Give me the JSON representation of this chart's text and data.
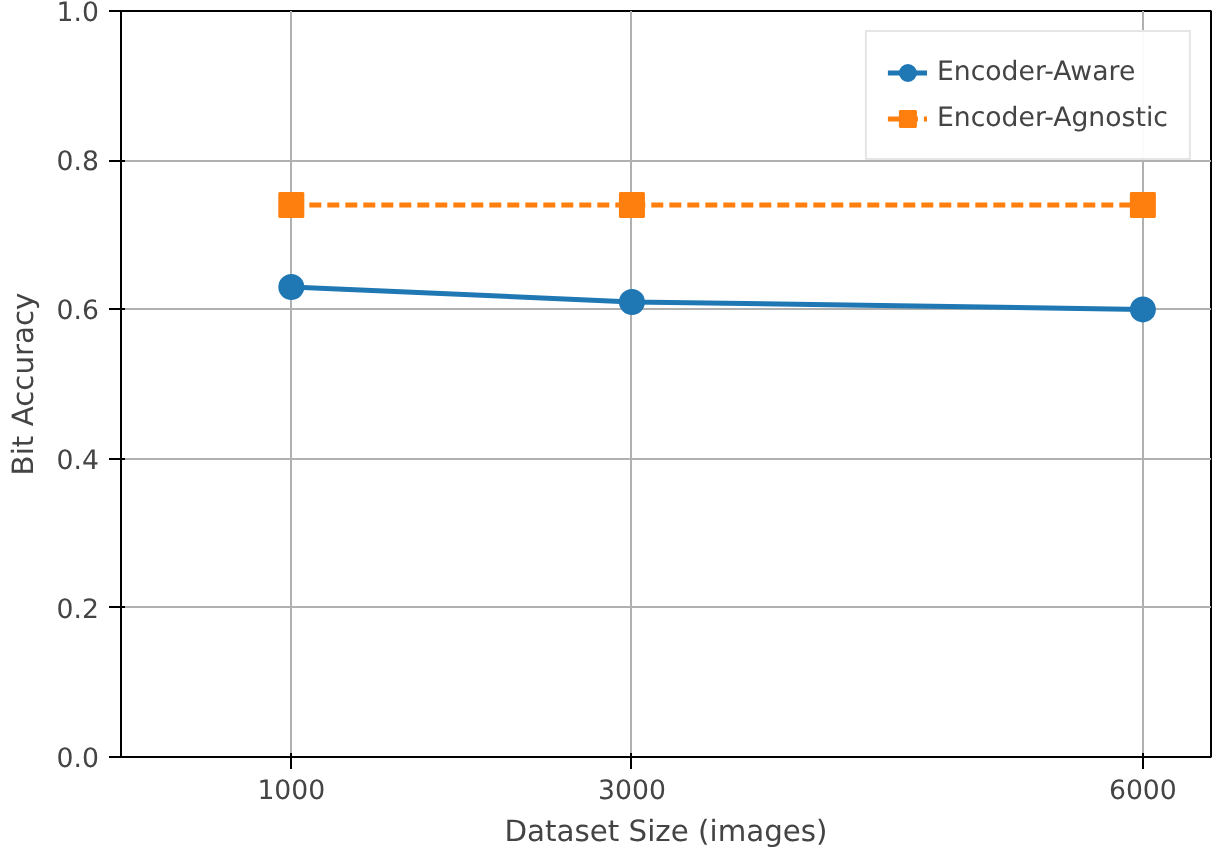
{
  "chart_data": {
    "type": "line",
    "xlabel": "Dataset Size (images)",
    "ylabel": "Bit Accuracy",
    "x": [
      1000,
      3000,
      6000
    ],
    "xlim": [
      0,
      6400
    ],
    "xticks": [
      1000,
      3000,
      6000
    ],
    "ylim": [
      0,
      1
    ],
    "yticks": [
      {
        "value": 0,
        "label": "0.0"
      },
      {
        "value": 0.2,
        "label": "0.2"
      },
      {
        "value": 0.4,
        "label": "0.4"
      },
      {
        "value": 0.6,
        "label": "0.6"
      },
      {
        "value": 0.8,
        "label": "0.8"
      },
      {
        "value": 1,
        "label": "1.0"
      }
    ],
    "grid": true,
    "legend": "top right",
    "series": [
      {
        "name": "Encoder-Aware",
        "color": "#1f77b4",
        "values": [
          0.63,
          0.61,
          0.6
        ],
        "marker": "circle",
        "line_style": "solid"
      },
      {
        "name": "Encoder-Agnostic",
        "color": "#ff7f0e",
        "values": [
          0.74,
          0.74,
          0.74
        ],
        "marker": "square",
        "line_style": "dashed"
      }
    ]
  }
}
